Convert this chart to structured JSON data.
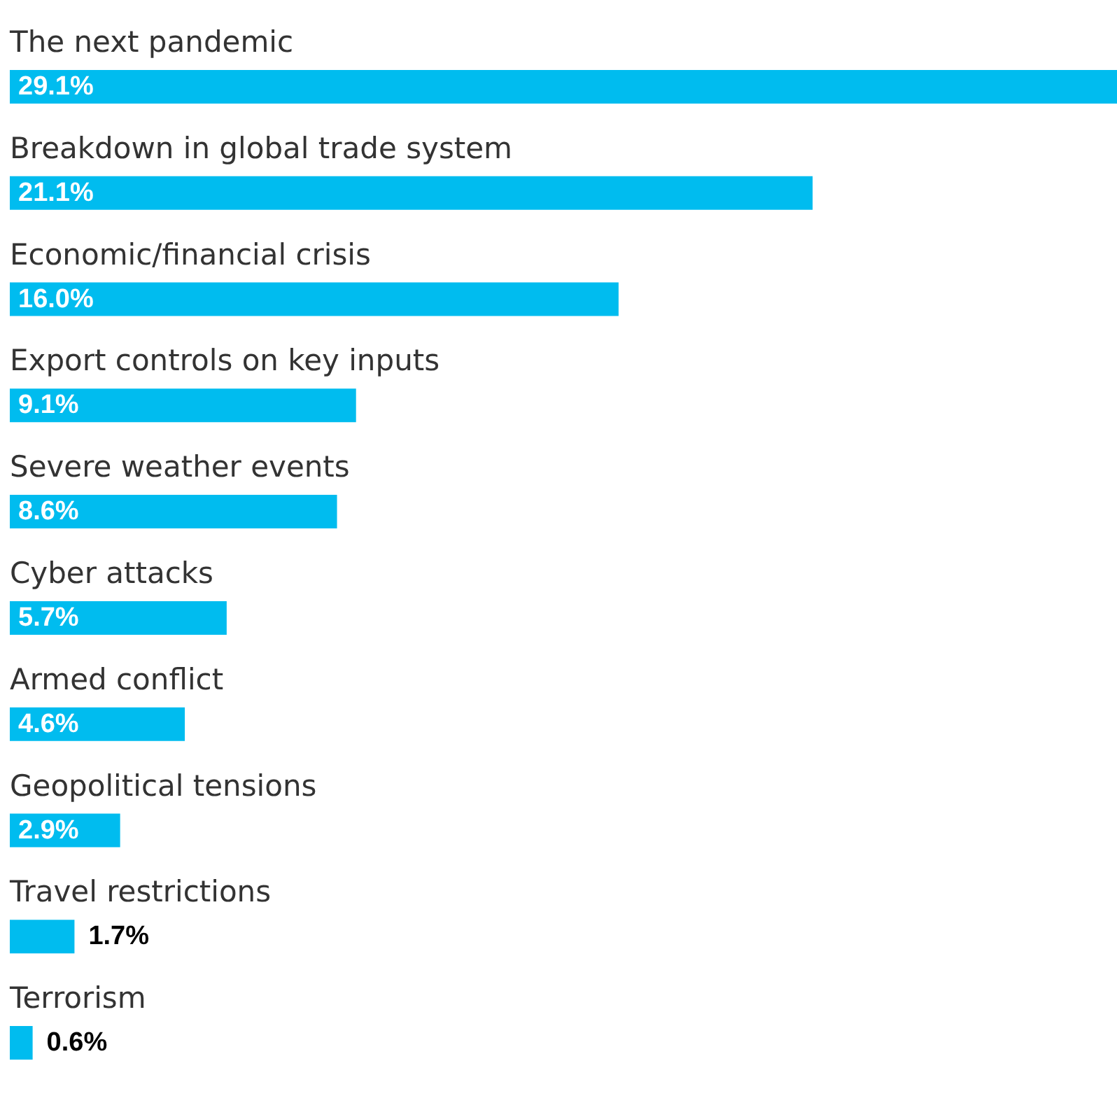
{
  "chart_data": {
    "type": "bar",
    "orientation": "horizontal",
    "categories": [
      "The next pandemic",
      "Breakdown in global trade system",
      "Economic/financial crisis",
      "Export controls on key inputs",
      "Severe weather events",
      "Cyber attacks",
      "Armed conflict",
      "Geopolitical tensions",
      "Travel restrictions",
      "Terrorism"
    ],
    "values": [
      29.1,
      21.1,
      16.0,
      9.1,
      8.6,
      5.7,
      4.6,
      2.9,
      1.7,
      0.6
    ],
    "value_labels": [
      "29.1%",
      "21.1%",
      "16.0%",
      "9.1%",
      "8.6%",
      "5.7%",
      "4.6%",
      "2.9%",
      "1.7%",
      "0.6%"
    ],
    "color": "#00bcef"
  }
}
